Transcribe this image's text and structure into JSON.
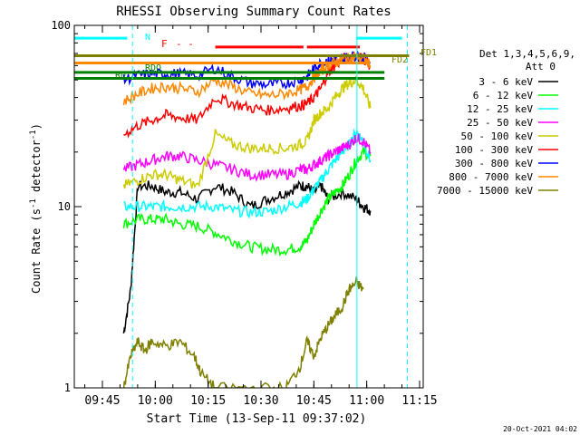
{
  "chart_data": {
    "type": "line",
    "title": "RHESSI Observing Summary Count Rates",
    "xlabel": "Start Time (13-Sep-11 09:37:02)",
    "ylabel_main": "Count Rate (s",
    "ylabel_sup": "-1",
    "ylabel_end": " detector",
    "ylabel_sup2": "-1",
    "ylabel_close": ")",
    "yscale": "log",
    "ylim": [
      1,
      100
    ],
    "xlim_minutes": [
      0,
      99
    ],
    "x_unit": "minutes after 09:37:02",
    "ytick_labels": [
      "1",
      "10",
      "100"
    ],
    "xtick_labels": [
      "09:45",
      "10:00",
      "10:15",
      "10:30",
      "10:45",
      "11:00",
      "11:15"
    ],
    "xtick_minutes": [
      7.97,
      22.97,
      37.97,
      52.97,
      67.97,
      82.97,
      97.97
    ],
    "legend_header": [
      "Det 1,3,4,5,6,9,",
      "Att 0"
    ],
    "legend_placement": "right",
    "timestamp": "20-Oct-2021 04:02",
    "flag_labels": {
      "night_left": "N",
      "flare": "F",
      "flare_dashes": "- -",
      "rdo": "RDO",
      "rd": "RD",
      "fd1": "FD1",
      "fd2": "FD2"
    },
    "series": [
      {
        "name": "3 - 6 keV",
        "color": "#000000",
        "x": [
          14,
          16,
          18,
          22,
          26,
          30,
          35,
          40,
          45,
          50,
          55,
          60,
          64,
          66,
          68,
          70,
          72,
          76,
          80,
          82,
          84
        ],
        "y": [
          2,
          3.5,
          13,
          13,
          12,
          12,
          11,
          13,
          12,
          10,
          11,
          12,
          13,
          13,
          12,
          13,
          11,
          12,
          11,
          10,
          9.5
        ]
      },
      {
        "name": "6 - 12 keV",
        "color": "#00ff00",
        "x": [
          14,
          18,
          22,
          26,
          30,
          35,
          40,
          45,
          50,
          55,
          60,
          64,
          66,
          68,
          70,
          72,
          74,
          76,
          78,
          80,
          82,
          84
        ],
        "y": [
          8,
          8.5,
          8.5,
          8.5,
          8,
          7.8,
          7.2,
          6.5,
          6,
          5.8,
          5.8,
          6,
          6.5,
          8,
          9.5,
          11,
          12,
          13,
          15,
          18,
          20,
          19
        ]
      },
      {
        "name": "12 - 25 keV",
        "color": "#00ffff",
        "x": [
          14,
          18,
          22,
          26,
          30,
          35,
          40,
          45,
          50,
          55,
          60,
          64,
          66,
          68,
          70,
          72,
          74,
          76,
          78,
          80,
          82,
          84
        ],
        "y": [
          10,
          10,
          10,
          10,
          10,
          10,
          10,
          9.5,
          9.3,
          9.4,
          10,
          10.5,
          11,
          12.5,
          14,
          16,
          18,
          20,
          22,
          26,
          23,
          18
        ]
      },
      {
        "name": "25 - 50 keV",
        "color": "#ff00ff",
        "x": [
          14,
          18,
          22,
          26,
          30,
          35,
          40,
          45,
          50,
          55,
          60,
          64,
          66,
          68,
          70,
          72,
          74,
          76,
          78,
          80,
          82,
          84
        ],
        "y": [
          16,
          17,
          18,
          19,
          19,
          18,
          17,
          16,
          15,
          15,
          15,
          16,
          16,
          17,
          18,
          19,
          20,
          21,
          22,
          24,
          23,
          20
        ]
      },
      {
        "name": "50 - 100 keV",
        "color": "#cccc00",
        "x": [
          14,
          18,
          22,
          26,
          30,
          35,
          40,
          45,
          50,
          55,
          60,
          64,
          66,
          68,
          70,
          72,
          74,
          76,
          78,
          80,
          82,
          84
        ],
        "y": [
          13,
          14,
          15,
          15,
          14,
          13,
          25,
          22,
          21,
          21,
          21,
          22,
          23,
          30,
          33,
          35,
          40,
          45,
          48,
          50,
          45,
          35
        ]
      },
      {
        "name": "100 - 300 keV",
        "color": "#ff0000",
        "x": [
          14,
          18,
          22,
          26,
          30,
          35,
          40,
          45,
          50,
          55,
          60,
          64,
          66,
          68,
          70,
          72,
          74,
          76,
          78,
          80,
          82,
          84
        ],
        "y": [
          25,
          28,
          30,
          32,
          31,
          30,
          40,
          37,
          35,
          34,
          35,
          36,
          37,
          40,
          45,
          55,
          60,
          65,
          67,
          68,
          66,
          60
        ]
      },
      {
        "name": "300 - 800 keV",
        "color": "#0000ff",
        "x": [
          14,
          18,
          22,
          26,
          30,
          35,
          40,
          45,
          50,
          55,
          60,
          64,
          66,
          68,
          70,
          72,
          74,
          76,
          78,
          80,
          82,
          84
        ],
        "y": [
          50,
          53,
          54,
          54,
          54,
          53,
          58,
          52,
          48,
          47,
          48,
          50,
          52,
          58,
          62,
          64,
          65,
          66,
          67,
          68,
          67,
          62
        ]
      },
      {
        "name": "800 - 7000 keV",
        "color": "#ff8800",
        "x": [
          14,
          18,
          22,
          26,
          30,
          35,
          40,
          45,
          50,
          55,
          60,
          64,
          66,
          68,
          70,
          72,
          74,
          76,
          78,
          80,
          82,
          84
        ],
        "y": [
          38,
          42,
          45,
          46,
          45,
          43,
          50,
          46,
          42,
          41,
          42,
          44,
          46,
          52,
          56,
          60,
          63,
          65,
          66,
          67,
          66,
          60
        ]
      },
      {
        "name": "7000 - 15000 keV",
        "color": "#808000",
        "x": [
          14,
          16,
          18,
          20,
          22,
          26,
          30,
          34,
          36,
          40,
          50,
          60,
          64,
          66,
          68,
          70,
          72,
          74,
          76,
          78,
          80,
          82
        ],
        "y": [
          1,
          1.5,
          1.8,
          1.6,
          1.8,
          1.7,
          1.8,
          1.5,
          1.2,
          1,
          1,
          1,
          1.3,
          1.8,
          1.5,
          1.9,
          2.2,
          2.5,
          2.8,
          3.5,
          3.8,
          3.5
        ]
      }
    ],
    "flag_lines": [
      {
        "name": "night",
        "color": "#00ffff",
        "x": [
          0,
          15
        ],
        "y": 85
      },
      {
        "name": "night-right",
        "color": "#00ffff",
        "x": [
          80,
          93
        ],
        "y": 85
      },
      {
        "name": "flare",
        "color": "#ff0000",
        "x": [
          40,
          65
        ],
        "y": 76
      },
      {
        "name": "flare-right",
        "color": "#ff0000",
        "x": [
          66,
          81
        ],
        "y": 76
      },
      {
        "name": "fd1",
        "color": "#808000",
        "x": [
          0,
          95
        ],
        "y": 68
      },
      {
        "name": "fd2",
        "color": "#ff8800",
        "x": [
          0,
          83
        ],
        "y": 62
      },
      {
        "name": "rdo",
        "color": "#008000",
        "x": [
          0,
          88
        ],
        "y": 55
      },
      {
        "name": "rd",
        "color": "#008000",
        "x": [
          0,
          88
        ],
        "y": 51
      }
    ],
    "vertical_markers": [
      {
        "name": "night-start",
        "color": "#00ffff",
        "minute": 16.5,
        "style": "dashed"
      },
      {
        "name": "night-end",
        "color": "#00ffff",
        "minute": 80.2,
        "style": "solid"
      },
      {
        "name": "night-end-2",
        "color": "#00ffff",
        "minute": 94.5,
        "style": "dashed"
      }
    ]
  }
}
